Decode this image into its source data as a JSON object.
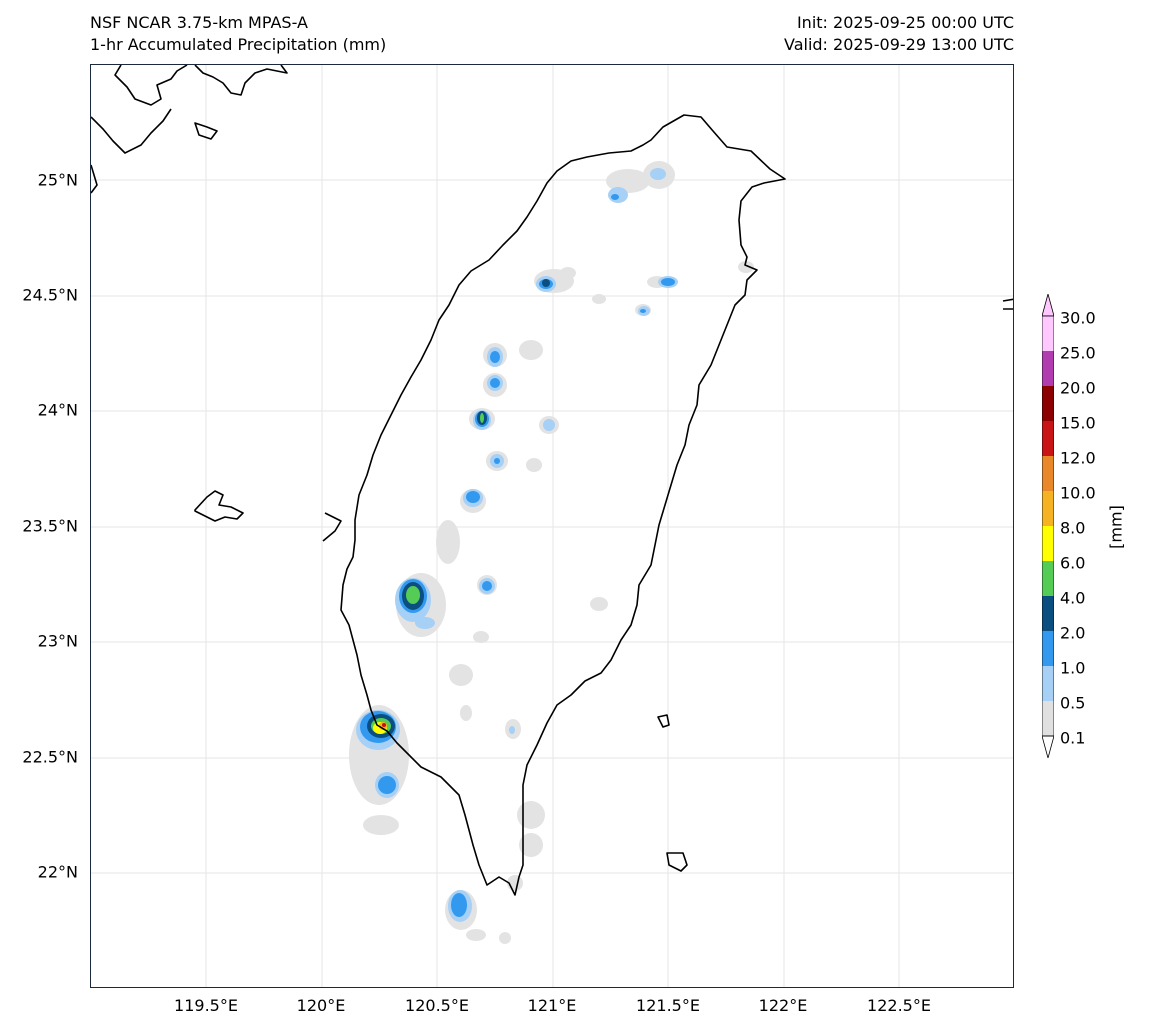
{
  "header": {
    "title_line1": "NSF NCAR 3.75-km MPAS-A",
    "title_line2": "1-hr Accumulated Precipitation (mm)",
    "init": "Init: 2025-09-25 00:00 UTC",
    "valid": "Valid: 2025-09-29 13:00 UTC"
  },
  "map": {
    "lon_range": [
      119.0,
      123.0
    ],
    "lat_range": [
      21.5,
      25.5
    ],
    "lat_ticks": [
      "25°N",
      "24.5°N",
      "24°N",
      "23.5°N",
      "23°N",
      "22.5°N",
      "22°N"
    ],
    "lon_ticks": [
      "119.5°E",
      "120°E",
      "120.5°E",
      "121°E",
      "121.5°E",
      "122°E",
      "122.5°E"
    ],
    "grid": true
  },
  "colorbar": {
    "unit_label": "[mm]",
    "levels": [
      "0.1",
      "0.5",
      "1.0",
      "2.0",
      "4.0",
      "6.0",
      "8.0",
      "10.0",
      "12.0",
      "15.0",
      "20.0",
      "25.0",
      "30.0"
    ],
    "colors": [
      "#e0e0e0",
      "#a6d0f5",
      "#3399ee",
      "#0b4f80",
      "#55cc55",
      "#ffff00",
      "#f5b324",
      "#e8882a",
      "#c81414",
      "#8b0000",
      "#b03cb0",
      "#ffc8ff"
    ]
  }
}
